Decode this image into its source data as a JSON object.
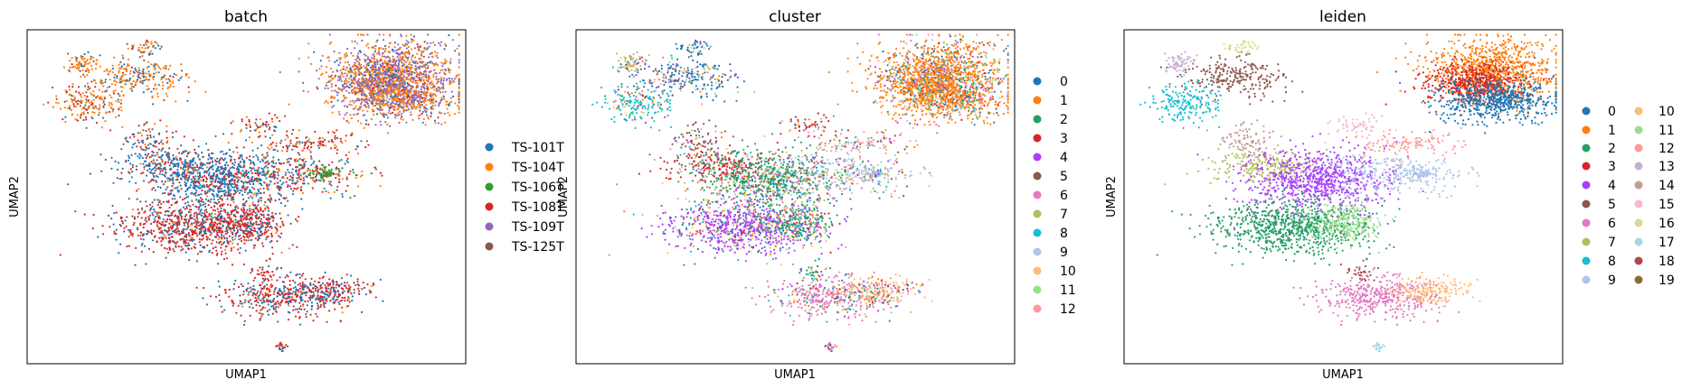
{
  "chart_data": [
    {
      "type": "scatter",
      "title": "batch",
      "xlabel": "UMAP1",
      "ylabel": "UMAP2",
      "grid": false,
      "legend_position": "right",
      "legend_columns": 1,
      "series": [
        {
          "name": "TS-101T",
          "color": "#1f77b4"
        },
        {
          "name": "TS-104T",
          "color": "#ff7f0e"
        },
        {
          "name": "TS-106T",
          "color": "#2ca02c"
        },
        {
          "name": "TS-108T",
          "color": "#d62728"
        },
        {
          "name": "TS-109T",
          "color": "#9467bd"
        },
        {
          "name": "TS-125T",
          "color": "#8c564b"
        }
      ]
    },
    {
      "type": "scatter",
      "title": "cluster",
      "xlabel": "UMAP1",
      "ylabel": "UMAP2",
      "grid": false,
      "legend_position": "right",
      "legend_columns": 1,
      "series": [
        {
          "name": "0",
          "color": "#1f77b4"
        },
        {
          "name": "1",
          "color": "#ff7f0e"
        },
        {
          "name": "2",
          "color": "#279e68"
        },
        {
          "name": "3",
          "color": "#d62728"
        },
        {
          "name": "4",
          "color": "#aa40fc"
        },
        {
          "name": "5",
          "color": "#8c564b"
        },
        {
          "name": "6",
          "color": "#e377c2"
        },
        {
          "name": "7",
          "color": "#b5bd61"
        },
        {
          "name": "8",
          "color": "#17becf"
        },
        {
          "name": "9",
          "color": "#aec7e8"
        },
        {
          "name": "10",
          "color": "#ffbb78"
        },
        {
          "name": "11",
          "color": "#98df8a"
        },
        {
          "name": "12",
          "color": "#ff9896"
        }
      ]
    },
    {
      "type": "scatter",
      "title": "leiden",
      "xlabel": "UMAP1",
      "ylabel": "UMAP2",
      "grid": false,
      "legend_position": "right",
      "legend_columns": 2,
      "series": [
        {
          "name": "0",
          "color": "#1f77b4"
        },
        {
          "name": "1",
          "color": "#ff7f0e"
        },
        {
          "name": "2",
          "color": "#279e68"
        },
        {
          "name": "3",
          "color": "#d62728"
        },
        {
          "name": "4",
          "color": "#aa40fc"
        },
        {
          "name": "5",
          "color": "#8c564b"
        },
        {
          "name": "6",
          "color": "#e377c2"
        },
        {
          "name": "7",
          "color": "#b5bd61"
        },
        {
          "name": "8",
          "color": "#17becf"
        },
        {
          "name": "9",
          "color": "#aec7e8"
        },
        {
          "name": "10",
          "color": "#ffbb78"
        },
        {
          "name": "11",
          "color": "#98df8a"
        },
        {
          "name": "12",
          "color": "#ff9896"
        },
        {
          "name": "13",
          "color": "#c5b0d5"
        },
        {
          "name": "14",
          "color": "#c49c94"
        },
        {
          "name": "15",
          "color": "#f7b6d2"
        },
        {
          "name": "16",
          "color": "#dbdb8d"
        },
        {
          "name": "17",
          "color": "#9edae5"
        },
        {
          "name": "18",
          "color": "#ad494a"
        },
        {
          "name": "19",
          "color": "#8c6d31"
        }
      ]
    }
  ]
}
